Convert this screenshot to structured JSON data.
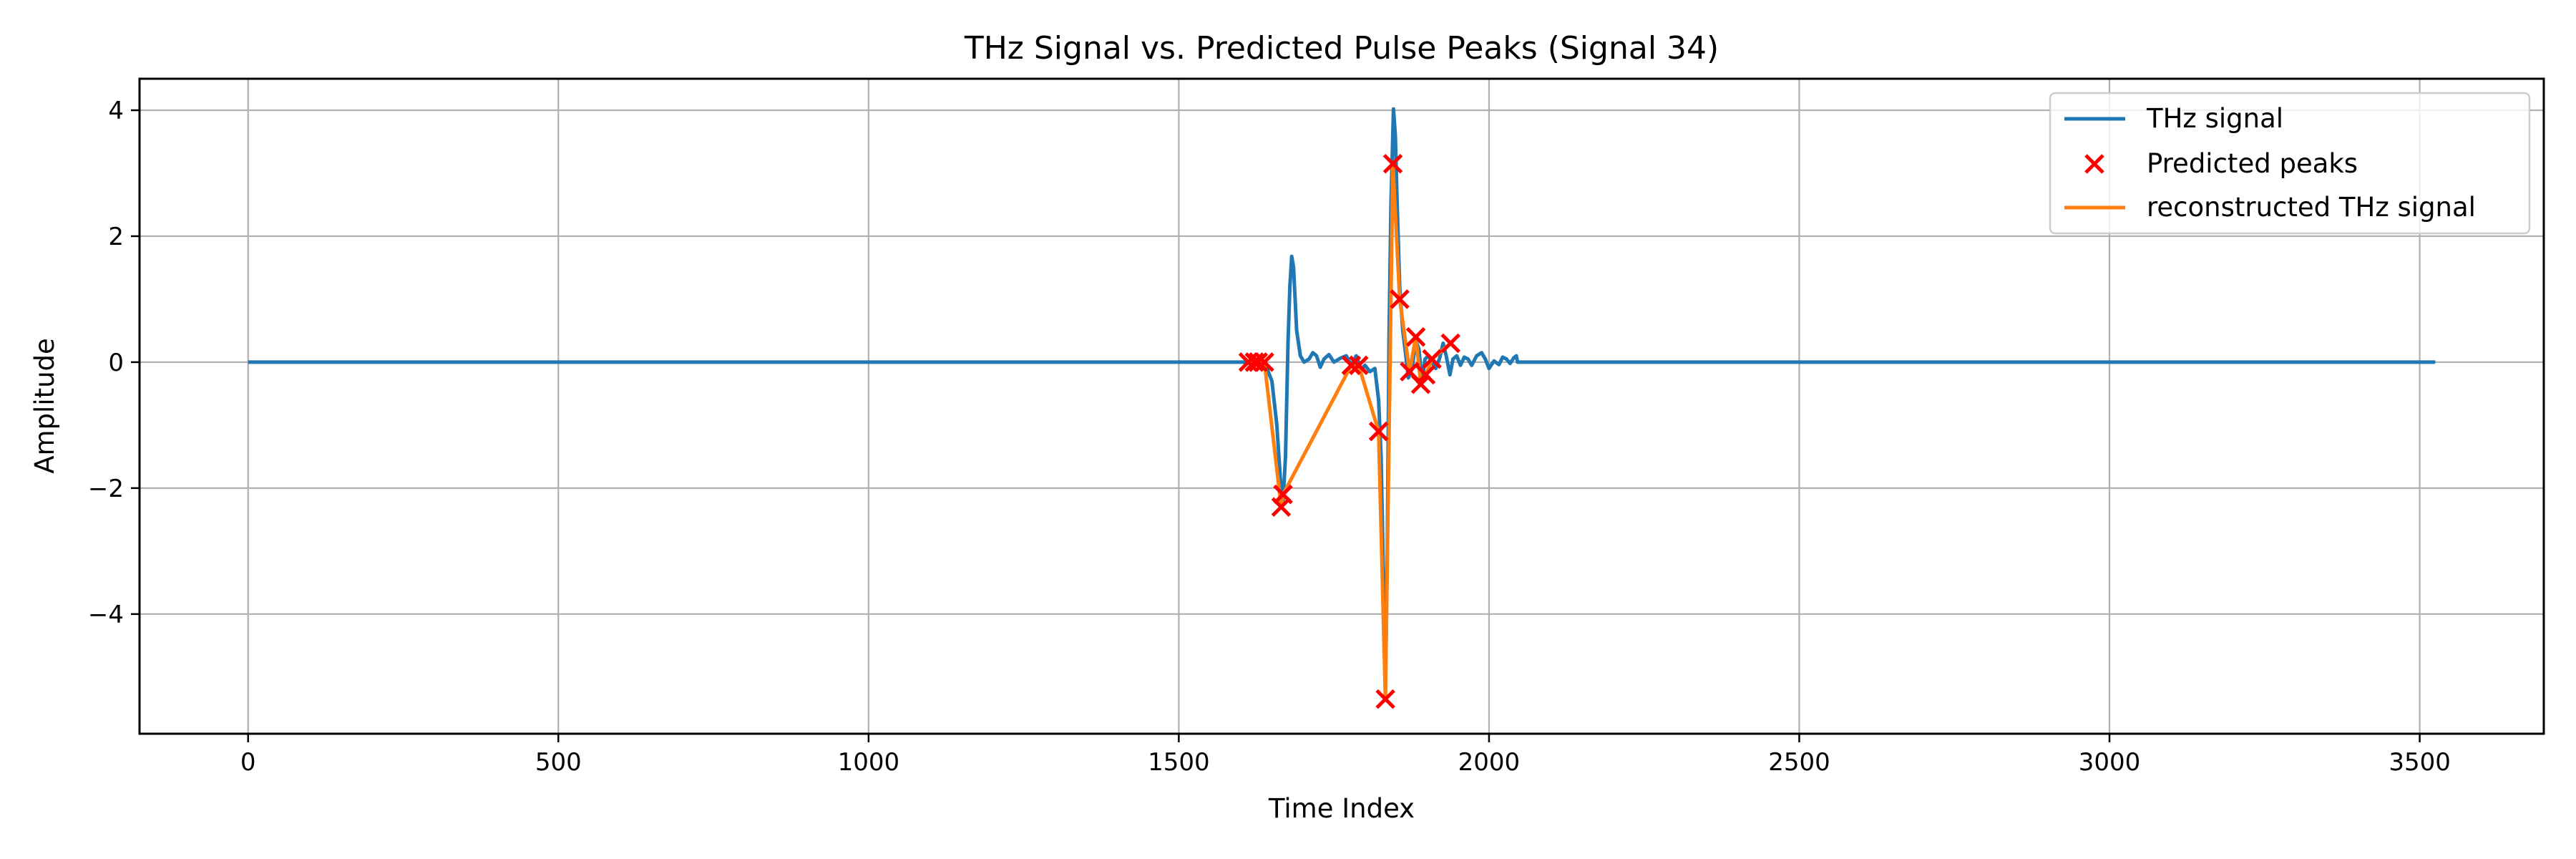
{
  "chart_data": {
    "type": "line",
    "title": "THz Signal vs. Predicted Pulse Peaks (Signal 34)",
    "xlabel": "Time Index",
    "ylabel": "Amplitude",
    "xlim": [
      -175,
      3700
    ],
    "ylim": [
      -5.9,
      4.5
    ],
    "xticks": [
      0,
      500,
      1000,
      1500,
      2000,
      2500,
      3000,
      3500
    ],
    "yticks": [
      -4,
      -2,
      0,
      2,
      4
    ],
    "grid": true,
    "legend_position": "top-right",
    "series": [
      {
        "name": "THz signal",
        "kind": "line",
        "color": "#1f77b4",
        "points": [
          [
            0,
            0
          ],
          [
            1600,
            0
          ],
          [
            1610,
            0.0
          ],
          [
            1620,
            0.01
          ],
          [
            1630,
            -0.01
          ],
          [
            1640,
            -0.05
          ],
          [
            1650,
            -0.3
          ],
          [
            1658,
            -1.0
          ],
          [
            1664,
            -1.9
          ],
          [
            1668,
            -2.2
          ],
          [
            1672,
            -1.5
          ],
          [
            1676,
            0.3
          ],
          [
            1679,
            1.2
          ],
          [
            1682,
            1.68
          ],
          [
            1685,
            1.5
          ],
          [
            1690,
            0.5
          ],
          [
            1696,
            0.1
          ],
          [
            1702,
            0.0
          ],
          [
            1710,
            0.05
          ],
          [
            1716,
            0.15
          ],
          [
            1722,
            0.1
          ],
          [
            1728,
            -0.08
          ],
          [
            1734,
            0.05
          ],
          [
            1742,
            0.12
          ],
          [
            1750,
            0.0
          ],
          [
            1760,
            0.06
          ],
          [
            1770,
            0.1
          ],
          [
            1778,
            -0.05
          ],
          [
            1786,
            0.1
          ],
          [
            1794,
            -0.12
          ],
          [
            1800,
            -0.05
          ],
          [
            1808,
            -0.15
          ],
          [
            1816,
            -0.1
          ],
          [
            1822,
            -0.6
          ],
          [
            1826,
            -1.5
          ],
          [
            1830,
            -3.5
          ],
          [
            1833,
            -5.3
          ],
          [
            1836,
            -3.0
          ],
          [
            1839,
            0.5
          ],
          [
            1842,
            2.5
          ],
          [
            1846,
            4.02
          ],
          [
            1849,
            3.6
          ],
          [
            1852,
            2.5
          ],
          [
            1856,
            1.2
          ],
          [
            1861,
            0.5
          ],
          [
            1866,
            0.1
          ],
          [
            1870,
            -0.25
          ],
          [
            1876,
            -0.1
          ],
          [
            1882,
            0.35
          ],
          [
            1887,
            0.2
          ],
          [
            1892,
            -0.3
          ],
          [
            1897,
            0.05
          ],
          [
            1902,
            0.1
          ],
          [
            1908,
            0.0
          ],
          [
            1914,
            -0.1
          ],
          [
            1920,
            0.05
          ],
          [
            1926,
            0.3
          ],
          [
            1931,
            0.1
          ],
          [
            1937,
            -0.2
          ],
          [
            1942,
            0.05
          ],
          [
            1948,
            0.1
          ],
          [
            1954,
            -0.05
          ],
          [
            1960,
            0.08
          ],
          [
            1966,
            0.05
          ],
          [
            1972,
            -0.05
          ],
          [
            1980,
            0.1
          ],
          [
            1988,
            0.15
          ],
          [
            1994,
            0.05
          ],
          [
            2000,
            -0.1
          ],
          [
            2008,
            0.02
          ],
          [
            2016,
            -0.04
          ],
          [
            2022,
            0.08
          ],
          [
            2028,
            0.05
          ],
          [
            2034,
            -0.02
          ],
          [
            2040,
            0.07
          ],
          [
            2044,
            0.1
          ],
          [
            2046,
            0.0
          ],
          [
            2100,
            0
          ],
          [
            3525,
            0
          ]
        ]
      },
      {
        "name": "Predicted peaks",
        "kind": "scatter",
        "color": "#ff0000",
        "points": [
          [
            1612,
            0.0
          ],
          [
            1622,
            0.0
          ],
          [
            1628,
            0.0
          ],
          [
            1638,
            0.0
          ],
          [
            1665,
            -2.3
          ],
          [
            1668,
            -2.1
          ],
          [
            1778,
            -0.05
          ],
          [
            1790,
            -0.05
          ],
          [
            1822,
            -1.1
          ],
          [
            1833,
            -5.35
          ],
          [
            1845,
            3.15
          ],
          [
            1856,
            1.0
          ],
          [
            1872,
            -0.15
          ],
          [
            1882,
            0.4
          ],
          [
            1890,
            -0.35
          ],
          [
            1898,
            -0.2
          ],
          [
            1908,
            0.05
          ],
          [
            1938,
            0.3
          ]
        ]
      },
      {
        "name": "reconstructed THz signal",
        "kind": "line",
        "color": "#ff7f0e",
        "points": [
          [
            1612,
            0.0
          ],
          [
            1622,
            0.0
          ],
          [
            1628,
            0.0
          ],
          [
            1638,
            0.0
          ],
          [
            1665,
            -2.3
          ],
          [
            1668,
            -2.1
          ],
          [
            1778,
            -0.05
          ],
          [
            1790,
            -0.05
          ],
          [
            1822,
            -1.1
          ],
          [
            1833,
            -5.35
          ],
          [
            1845,
            3.15
          ],
          [
            1856,
            1.0
          ],
          [
            1872,
            -0.15
          ],
          [
            1882,
            0.4
          ],
          [
            1890,
            -0.35
          ],
          [
            1898,
            -0.2
          ],
          [
            1908,
            0.05
          ],
          [
            1938,
            0.3
          ]
        ]
      }
    ]
  }
}
